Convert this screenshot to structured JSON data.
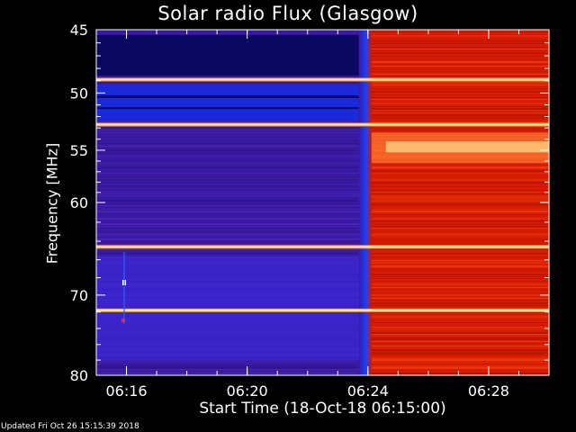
{
  "chart_data": {
    "type": "heatmap",
    "title": "Solar radio Flux (Glasgow)",
    "xlabel": "Start Time (18-Oct-18 06:15:00)",
    "ylabel": "Frequency [MHz]",
    "x_ticks": [
      "06:16",
      "06:20",
      "06:24",
      "06:28"
    ],
    "y_ticks": [
      45,
      50,
      55,
      60,
      70,
      80
    ],
    "y_scale": "log",
    "xlim": [
      "06:15:00",
      "06:30:00"
    ],
    "ylim": [
      45,
      80
    ],
    "transition_time": "06:24:00",
    "horizontal_lines_mhz": [
      48.9,
      52.7,
      64.6,
      71.8
    ],
    "colors": {
      "low": "#3a1aa0",
      "high": "#d81c00",
      "saturated": "#ffe9a0"
    }
  },
  "footer": "Updated Fri Oct 26 15:15:39 2018"
}
